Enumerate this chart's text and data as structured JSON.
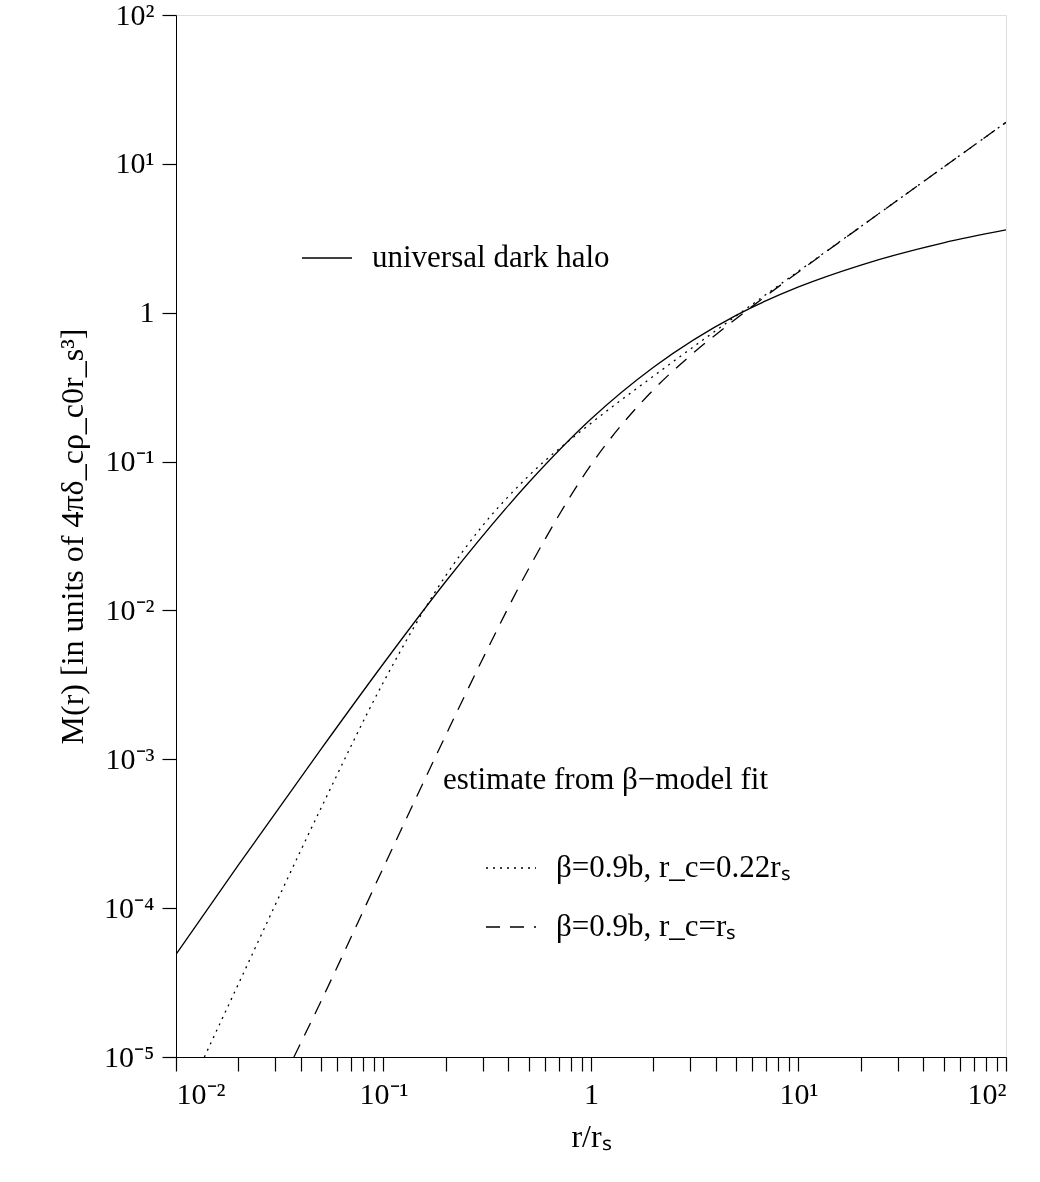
{
  "chart_data": {
    "type": "line",
    "xlabel": "r/rₛ",
    "ylabel": "M(r) [in units of 4πδ_cρ_c0r_s³]",
    "log": "xy",
    "grid": false,
    "legend": "bottom left",
    "legend_title": "estimate from β−model fit",
    "xlim": [
      0.01,
      100
    ],
    "ylim": [
      1e-05,
      100
    ],
    "xticks": [
      {
        "value": 0.01,
        "label": "10⁻²"
      },
      {
        "value": 0.02,
        "label": null
      },
      {
        "value": 0.03,
        "label": null
      },
      {
        "value": 0.04,
        "label": null
      },
      {
        "value": 0.05,
        "label": null
      },
      {
        "value": 0.06,
        "label": null
      },
      {
        "value": 0.07,
        "label": null
      },
      {
        "value": 0.08,
        "label": null
      },
      {
        "value": 0.09,
        "label": null
      },
      {
        "value": 0.1,
        "label": "10⁻¹"
      },
      {
        "value": 0.2,
        "label": null
      },
      {
        "value": 0.3,
        "label": null
      },
      {
        "value": 0.4,
        "label": null
      },
      {
        "value": 0.5,
        "label": null
      },
      {
        "value": 0.6,
        "label": null
      },
      {
        "value": 0.7,
        "label": null
      },
      {
        "value": 0.8,
        "label": null
      },
      {
        "value": 0.9,
        "label": null
      },
      {
        "value": 1,
        "label": "1"
      },
      {
        "value": 2,
        "label": null
      },
      {
        "value": 3,
        "label": null
      },
      {
        "value": 4,
        "label": null
      },
      {
        "value": 5,
        "label": null
      },
      {
        "value": 6,
        "label": null
      },
      {
        "value": 7,
        "label": null
      },
      {
        "value": 8,
        "label": null
      },
      {
        "value": 9,
        "label": null
      },
      {
        "value": 10,
        "label": "10¹"
      },
      {
        "value": 20,
        "label": null
      },
      {
        "value": 30,
        "label": null
      },
      {
        "value": 40,
        "label": null
      },
      {
        "value": 50,
        "label": null
      },
      {
        "value": 60,
        "label": null
      },
      {
        "value": 70,
        "label": null
      },
      {
        "value": 80,
        "label": null
      },
      {
        "value": 90,
        "label": null
      },
      {
        "value": 100,
        "label": "10²"
      }
    ],
    "yticks": [
      {
        "value": 1e-05,
        "label": "10⁻⁵"
      },
      {
        "value": 0.0001,
        "label": "10⁻⁴"
      },
      {
        "value": 0.001,
        "label": "10⁻³"
      },
      {
        "value": 0.01,
        "label": "10⁻²"
      },
      {
        "value": 0.1,
        "label": "10⁻¹"
      },
      {
        "value": 1,
        "label": "1"
      },
      {
        "value": 10,
        "label": "10¹"
      },
      {
        "value": 100,
        "label": "10²"
      }
    ],
    "series": [
      {
        "name": "universal dark halo",
        "color": "#000000",
        "line_style": "solid",
        "x": [
          0.01,
          0.02,
          0.05,
          0.1,
          0.2,
          0.5,
          1,
          2,
          5,
          10,
          20,
          50,
          100
        ],
        "values": [
          4.9e-05,
          0.000195,
          0.00117,
          0.0044,
          0.0157,
          0.072,
          0.193,
          0.43,
          0.96,
          1.49,
          2.09,
          2.95,
          3.6
        ]
      },
      {
        "name": "β=0.9b, r_c=0.22rₛ",
        "color": "#000000",
        "line_style": "dotted",
        "x": [
          0.0137,
          0.02,
          0.05,
          0.1,
          0.2,
          0.3,
          0.5,
          1,
          2,
          5,
          10,
          20,
          50,
          100
        ],
        "values": [
          1e-05,
          3.1e-05,
          0.00047,
          0.0033,
          0.0172,
          0.037,
          0.08,
          0.181,
          0.375,
          0.95,
          1.9,
          3.8,
          9.5,
          19
        ]
      },
      {
        "name": "β=0.9b, r_c=rₛ",
        "color": "#000000",
        "line_style": "dashed",
        "x": [
          0.037,
          0.05,
          0.1,
          0.2,
          0.3,
          0.5,
          1,
          2,
          3,
          5,
          10,
          20,
          50,
          100
        ],
        "values": [
          1e-05,
          2.37e-05,
          0.000188,
          0.00146,
          0.0047,
          0.019,
          0.095,
          0.304,
          0.513,
          0.91,
          1.88,
          3.79,
          9.5,
          19
        ]
      }
    ]
  }
}
